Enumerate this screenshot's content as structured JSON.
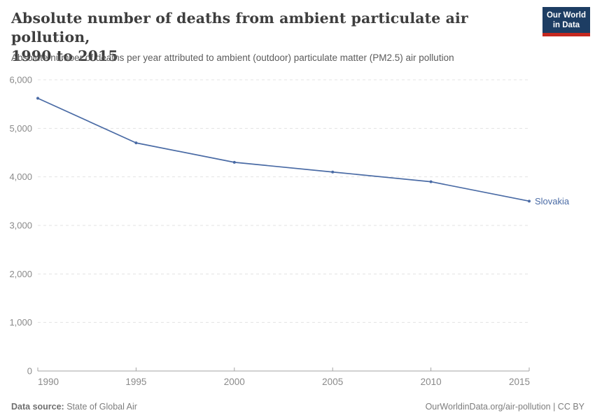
{
  "header": {
    "title_line1": "Absolute number of deaths from ambient particulate air pollution,",
    "title_line2": "1990 to 2015",
    "subtitle": "Absolute number of deaths per year attributed to ambient (outdoor) particulate matter (PM2.5) air pollution",
    "logo": {
      "line1": "Our World",
      "line2": "in Data",
      "bg_color": "#1d3d63",
      "bar_color": "#c5281f"
    }
  },
  "chart_data": {
    "type": "line",
    "title": "Absolute number of deaths from ambient particulate air pollution, 1990 to 2015",
    "x": [
      1990,
      1995,
      2000,
      2005,
      2010,
      2015
    ],
    "series": [
      {
        "name": "Slovakia",
        "color": "#4A6BA5",
        "values": [
          5620,
          4700,
          4300,
          4100,
          3900,
          3500
        ]
      }
    ],
    "xlabel": "",
    "ylabel": "",
    "xlim": [
      1990,
      2015
    ],
    "ylim": [
      0,
      6000
    ],
    "xticks": [
      1990,
      1995,
      2000,
      2005,
      2010,
      2015
    ],
    "xtick_labels": [
      "1990",
      "1995",
      "2000",
      "2005",
      "2010",
      "2015"
    ],
    "yticks": [
      0,
      1000,
      2000,
      3000,
      4000,
      5000,
      6000
    ],
    "ytick_labels": [
      "0",
      "1,000",
      "2,000",
      "3,000",
      "4,000",
      "5,000",
      "6,000"
    ],
    "grid": "horizontal-dashed",
    "grid_color": "#e3e3e3",
    "axis_color": "#a3a3a3",
    "tick_text_color": "#8a8a8a",
    "legend_position": "end-of-line-label"
  },
  "footer": {
    "source_label": "Data source:",
    "source_value": " State of Global Air",
    "link": "OurWorldinData.org/air-pollution | CC BY"
  }
}
